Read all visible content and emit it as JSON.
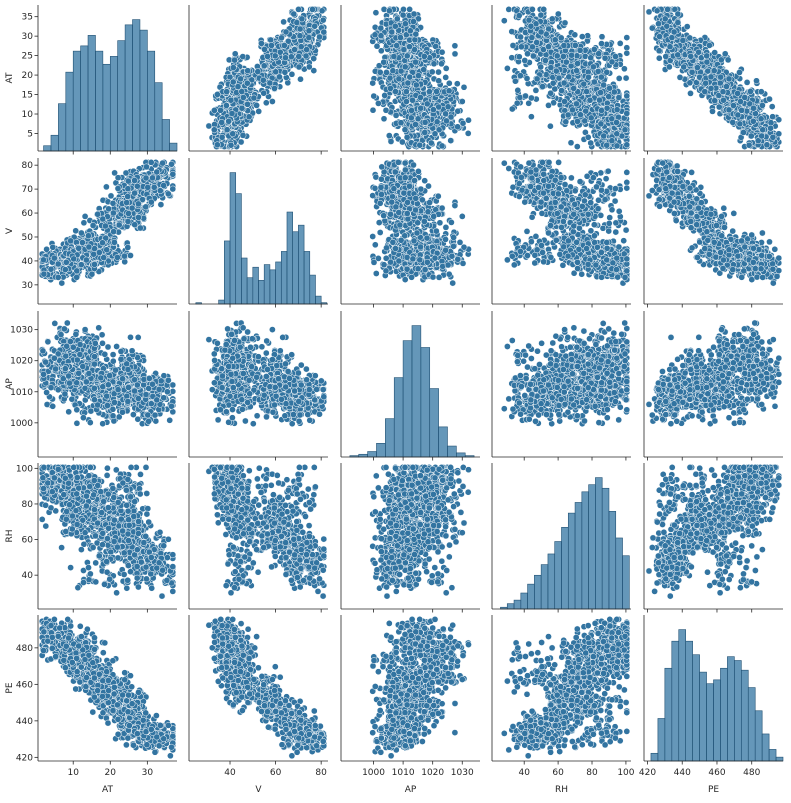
{
  "chart_data": {
    "type": "scatter",
    "variables": [
      "AT",
      "V",
      "AP",
      "RH",
      "PE"
    ],
    "color": "#3274a1",
    "point_edge_color": "#ffffff",
    "diagonal_type": "histogram",
    "axes": {
      "AT": {
        "label": "AT",
        "range": [
          0.5,
          38
        ],
        "ticks": [
          10,
          20,
          30
        ],
        "left_ticks": [
          5,
          10,
          15,
          20,
          25,
          30,
          35
        ]
      },
      "V": {
        "label": "V",
        "range": [
          22,
          83
        ],
        "ticks": [
          40,
          60,
          80
        ],
        "left_ticks": [
          30,
          40,
          50,
          60,
          70,
          80
        ]
      },
      "AP": {
        "label": "AP",
        "range": [
          989,
          1036
        ],
        "ticks": [
          1000,
          1010,
          1020,
          1030
        ],
        "left_ticks": [
          1000,
          1010,
          1020,
          1030
        ]
      },
      "RH": {
        "label": "RH",
        "range": [
          21,
          103
        ],
        "ticks": [
          40,
          60,
          80,
          100
        ],
        "left_ticks": [
          40,
          60,
          80,
          100
        ]
      },
      "PE": {
        "label": "PE",
        "range": [
          418,
          498
        ],
        "ticks": [
          420,
          440,
          460,
          480
        ],
        "left_ticks": [
          420,
          440,
          460,
          480
        ]
      }
    },
    "histograms": {
      "AT": {
        "bins": [
          2,
          4,
          6,
          8,
          10,
          12,
          14,
          16,
          18,
          20,
          22,
          24,
          26,
          28,
          30,
          32,
          34,
          36
        ],
        "counts": [
          2,
          6,
          18,
          30,
          38,
          40,
          44,
          38,
          33,
          36,
          42,
          48,
          50,
          46,
          38,
          26,
          12,
          3
        ]
      },
      "V": {
        "bins": [
          25,
          27.5,
          30,
          32.5,
          35,
          37.5,
          40,
          42.5,
          45,
          47.5,
          50,
          52.5,
          55,
          57.5,
          60,
          62.5,
          65,
          67.5,
          70,
          72.5,
          75,
          77.5,
          80
        ],
        "counts": [
          1,
          0,
          0,
          0,
          3,
          48,
          100,
          84,
          35,
          20,
          28,
          18,
          30,
          26,
          32,
          40,
          70,
          55,
          60,
          40,
          22,
          6,
          1
        ]
      },
      "AP": {
        "bins": [
          992,
          995,
          998,
          1001,
          1004,
          1007,
          1010,
          1013,
          1016,
          1019,
          1022,
          1025,
          1028,
          1031
        ],
        "counts": [
          1,
          2,
          4,
          10,
          28,
          58,
          85,
          96,
          80,
          50,
          22,
          8,
          3,
          1
        ]
      },
      "RH": {
        "bins": [
          26,
          30,
          34,
          38,
          42,
          46,
          50,
          54,
          58,
          62,
          66,
          70,
          74,
          78,
          82,
          86,
          90,
          94,
          98
        ],
        "counts": [
          1,
          3,
          5,
          9,
          14,
          19,
          25,
          31,
          38,
          46,
          54,
          60,
          66,
          70,
          74,
          68,
          55,
          40,
          30
        ]
      },
      "PE": {
        "bins": [
          422,
          426,
          430,
          434,
          438,
          442,
          446,
          450,
          454,
          458,
          462,
          466,
          470,
          474,
          478,
          482,
          486,
          490,
          494
        ],
        "counts": [
          4,
          22,
          48,
          62,
          68,
          62,
          55,
          46,
          40,
          42,
          48,
          54,
          52,
          47,
          38,
          26,
          14,
          6,
          2
        ]
      }
    },
    "samples": {
      "AT": [
        14.96,
        25.18,
        5.11,
        20.86,
        10.82,
        26.27,
        15.89,
        9.48,
        14.64,
        11.74,
        17.99,
        20.14,
        24.34,
        25.71,
        26.19,
        21.42,
        18.21,
        11.04,
        14.45,
        13.97,
        17.76,
        5.41,
        7.76,
        27.23,
        27.36,
        27.47,
        31.45,
        23.09,
        13.67,
        10.38,
        22.46,
        28.41,
        8.24,
        32.34,
        29.12,
        12.06,
        6.99,
        19.7,
        24.8,
        30.22,
        16.34,
        3.5,
        35.1,
        8.9,
        21.9,
        33.6,
        2.8,
        19.1,
        28.9,
        12.9
      ],
      "V": [
        41.76,
        62.96,
        39.4,
        57.32,
        37.5,
        59.44,
        43.96,
        44.71,
        45.0,
        43.56,
        43.72,
        46.93,
        73.5,
        58.59,
        69.34,
        43.79,
        45.0,
        41.74,
        52.75,
        38.47,
        42.42,
        40.07,
        42.28,
        69.75,
        70.36,
        66.51,
        68.94,
        60.4,
        41.7,
        40.07,
        56.5,
        71.06,
        39.54,
        77.54,
        71.58,
        42.86,
        39.72,
        49.02,
        63.77,
        73.18,
        44.88,
        35.19,
        76.2,
        39.9,
        61.5,
        70.2,
        39.4,
        58.2,
        68.3,
        40.6
      ],
      "AP": [
        1024.07,
        1020.04,
        1012.16,
        1010.24,
        1009.23,
        1012.23,
        1014.02,
        1019.12,
        1021.78,
        1015.14,
        1008.64,
        1014.66,
        1011.95,
        1012.33,
        1009.15,
        1015.51,
        1007.8,
        1020.66,
        1023.58,
        1006.52,
        1013.18,
        1015.44,
        1022.73,
        1010.05,
        1011.4,
        1009.89,
        1007.08,
        1017.56,
        1021.01,
        1013.94,
        1010.84,
        1005.51,
        1011.3,
        1008.74,
        1009.9,
        1018.22,
        1016.71,
        1008.1,
        1012.44,
        1011.23,
        1009.84,
        1018.8,
        1007.2,
        1026.3,
        1004.9,
        1012.6,
        1016.3,
        1009.9,
        1004.8,
        1022.4
      ],
      "RH": [
        73.17,
        59.08,
        92.14,
        76.64,
        96.62,
        58.77,
        75.24,
        66.43,
        41.25,
        70.72,
        75.04,
        64.22,
        84.15,
        61.83,
        87.59,
        43.08,
        48.84,
        77.51,
        63.59,
        88.12,
        82.64,
        95.81,
        80.27,
        51.12,
        46.81,
        72.3,
        48.34,
        75.2,
        88.31,
        84.8,
        90.12,
        44.98,
        87.9,
        48.66,
        57.41,
        76.9,
        91.45,
        71.13,
        61.33,
        54.06,
        82.28,
        97.12,
        41.26,
        89.19,
        68.7,
        53.29,
        86.6,
        62.4,
        45.6,
        93.1
      ],
      "PE": [
        463.26,
        444.37,
        488.56,
        446.48,
        473.9,
        443.67,
        467.35,
        478.42,
        475.98,
        477.5,
        453.02,
        453.99,
        440.29,
        451.28,
        433.99,
        462.19,
        467.54,
        477.2,
        459.85,
        472.1,
        462.6,
        482.43,
        477.7,
        436.63,
        436.46,
        431.89,
        429.8,
        448.64,
        470.85,
        483.6,
        452.0,
        435.1,
        485.77,
        430.5,
        437.8,
        467.36,
        481.58,
        457.97,
        441.33,
        432.42,
        461.72,
        489.12,
        431.54,
        478.4,
        448.9,
        435.6,
        488.9,
        457.2,
        437.1,
        470.3
      ]
    },
    "title": "",
    "legend": "none",
    "grid": false
  }
}
